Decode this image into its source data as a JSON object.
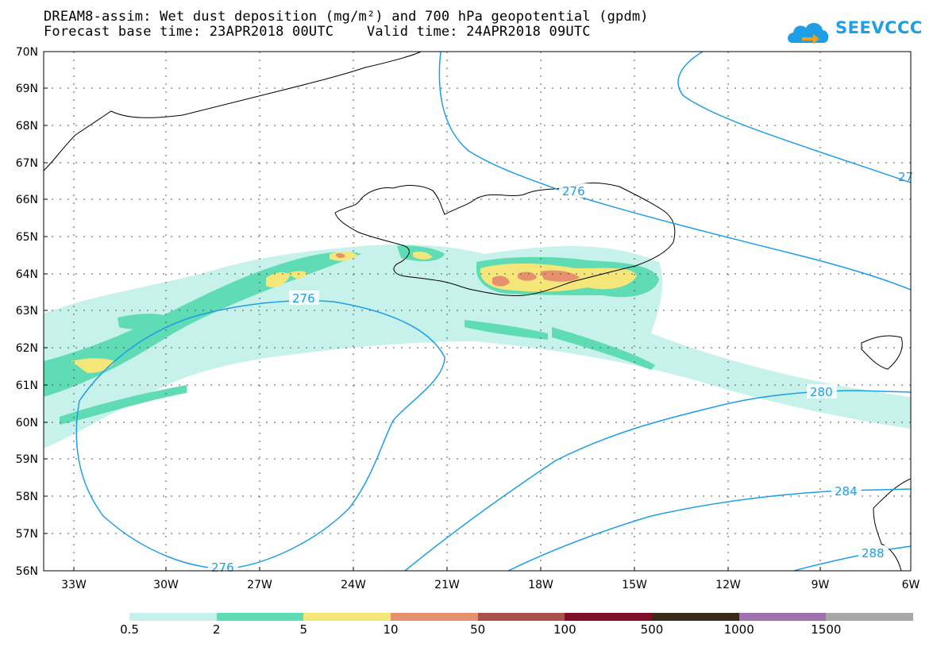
{
  "header": {
    "title_line1": "DREAM8-assim: Wet dust deposition (mg/m²) and 700 hPa geopotential (gpdm)",
    "title_line2": "Forecast base time: 23APR2018 00UTC    Valid time: 24APR2018 09UTC",
    "logo_text": "SEEVCCC"
  },
  "map": {
    "lat_labels": [
      "70N",
      "69N",
      "68N",
      "67N",
      "66N",
      "65N",
      "64N",
      "63N",
      "62N",
      "61N",
      "60N",
      "59N",
      "58N",
      "57N",
      "56N"
    ],
    "lon_labels": [
      "33W",
      "30W",
      "27W",
      "24W",
      "21W",
      "18W",
      "15W",
      "12W",
      "9W",
      "6W"
    ],
    "contour_labels": [
      "276",
      "276",
      "276",
      "280",
      "284",
      "288",
      "27"
    ],
    "colors": {
      "contour": "#1e9ee6",
      "coast": "#000000",
      "grid": "#555555"
    }
  },
  "legend": {
    "labels": [
      "0.5",
      "2",
      "5",
      "10",
      "50",
      "100",
      "500",
      "1000",
      "1500"
    ],
    "colors": [
      "#c6f2eb",
      "#5fdcb4",
      "#f5e67a",
      "#e6906e",
      "#a8504a",
      "#80102a",
      "#3a2a1a",
      "#a070b0",
      "#a8a8a8"
    ]
  }
}
